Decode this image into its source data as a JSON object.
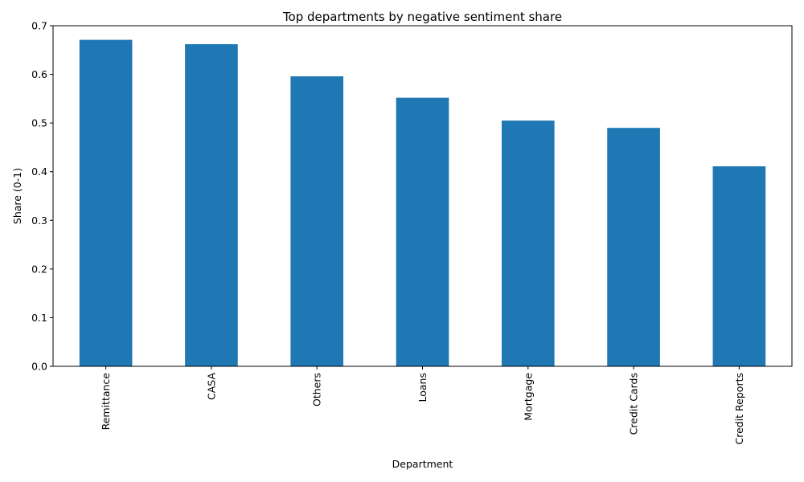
{
  "chart_data": {
    "type": "bar",
    "title": "Top departments by negative sentiment share",
    "xlabel": "Department",
    "ylabel": "Share (0-1)",
    "categories": [
      "Remittance",
      "CASA",
      "Others",
      "Loans",
      "Mortgage",
      "Credit Cards",
      "Credit Reports"
    ],
    "values": [
      0.671,
      0.662,
      0.596,
      0.552,
      0.505,
      0.49,
      0.411
    ],
    "ylim": [
      0,
      0.7
    ],
    "yticks": [
      "0.0",
      "0.1",
      "0.2",
      "0.3",
      "0.4",
      "0.5",
      "0.6",
      "0.7"
    ],
    "bar_color": "#1f77b4",
    "grid": false,
    "legend": "none"
  }
}
